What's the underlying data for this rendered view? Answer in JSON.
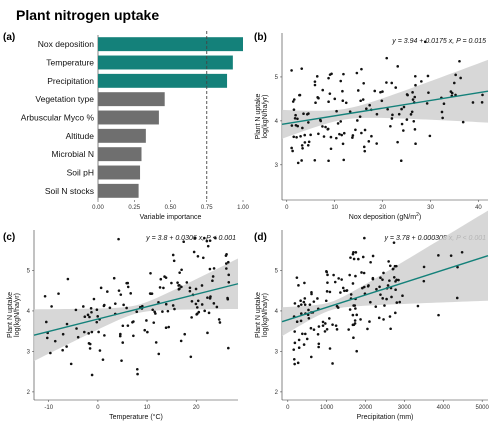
{
  "figure_title": "Plant nitrogen uptake",
  "colors": {
    "teal": "#14817a",
    "grey": "#6f6f6f",
    "band": "#d0d0d0",
    "point": "#111111"
  },
  "chart_data": [
    {
      "panel": "(a)",
      "type": "bar",
      "orientation": "horizontal",
      "xlabel": "Variable importance",
      "xlim": [
        0,
        1.0
      ],
      "xticks": [
        "0.00",
        "0.25",
        "0.50",
        "0.75",
        "1.00"
      ],
      "reference_line": 0.75,
      "categories": [
        "Nox deposition",
        "Temperature",
        "Precipitation",
        "Vegetation type",
        "Arbuscular Myco %",
        "Altitude",
        "Microbial N",
        "Soil pH",
        "Soil N stocks"
      ],
      "values": [
        1.0,
        0.93,
        0.89,
        0.46,
        0.42,
        0.33,
        0.3,
        0.29,
        0.28
      ],
      "highlight": [
        true,
        true,
        true,
        false,
        false,
        false,
        false,
        false,
        false
      ]
    },
    {
      "panel": "(b)",
      "type": "scatter",
      "xlabel_main": "Nox deposition (gN/m",
      "xlabel_sup": "2",
      "xlabel_end": ")",
      "ylabel_line1": "Plant N uptake",
      "ylabel_line2": "log(kgN/ha/yr)",
      "xlim": [
        -1,
        42
      ],
      "ylim": [
        2.2,
        6.0
      ],
      "xticks": [
        0,
        10,
        20,
        30,
        40
      ],
      "yticks": [
        3,
        4,
        5
      ],
      "equation": "y = 3.94 + 0.0175 x, P = 0.015",
      "fit": {
        "intercept": 3.94,
        "slope": 0.0175,
        "band_center": 12,
        "band_min": 0.12,
        "band_k": 0.00055
      },
      "seed": 11,
      "n": 150,
      "x_gen": "nox"
    },
    {
      "panel": "(c)",
      "type": "scatter",
      "xlabel_main": "Temperature (°C)",
      "xlabel_sup": "",
      "xlabel_end": "",
      "ylabel_line1": "Plant N uptake",
      "ylabel_line2": "log(kgN/ha/yr)",
      "xlim": [
        -13,
        28.5
      ],
      "ylim": [
        1.8,
        6.0
      ],
      "xticks": [
        -10,
        0,
        10,
        20
      ],
      "yticks": [
        2,
        3,
        4,
        5
      ],
      "equation": "y = 3.8 + 0.0306 x, P < 0.001",
      "fit": {
        "intercept": 3.8,
        "slope": 0.0306,
        "band_center": 8,
        "band_min": 0.1,
        "band_k": 0.0009
      },
      "seed": 23,
      "n": 160,
      "x_gen": "temp"
    },
    {
      "panel": "(d)",
      "type": "scatter",
      "xlabel_main": "Precipitation (mm)",
      "xlabel_sup": "",
      "xlabel_end": "",
      "ylabel_line1": "Plant N uptake",
      "ylabel_line2": "log(kgN/ha/yr)",
      "xlim": [
        -150,
        5150
      ],
      "ylim": [
        1.8,
        6.0
      ],
      "xticks": [
        0,
        1000,
        2000,
        3000,
        4000,
        5000
      ],
      "yticks": [
        2,
        3,
        4,
        5
      ],
      "equation": "y = 3.78 + 0.000308 x, P < 0.001",
      "fit": {
        "intercept": 3.78,
        "slope": 0.000308,
        "band_center": 1100,
        "band_min": 0.1,
        "band_k": 7.5e-08
      },
      "seed": 37,
      "n": 160,
      "x_gen": "precip"
    }
  ]
}
